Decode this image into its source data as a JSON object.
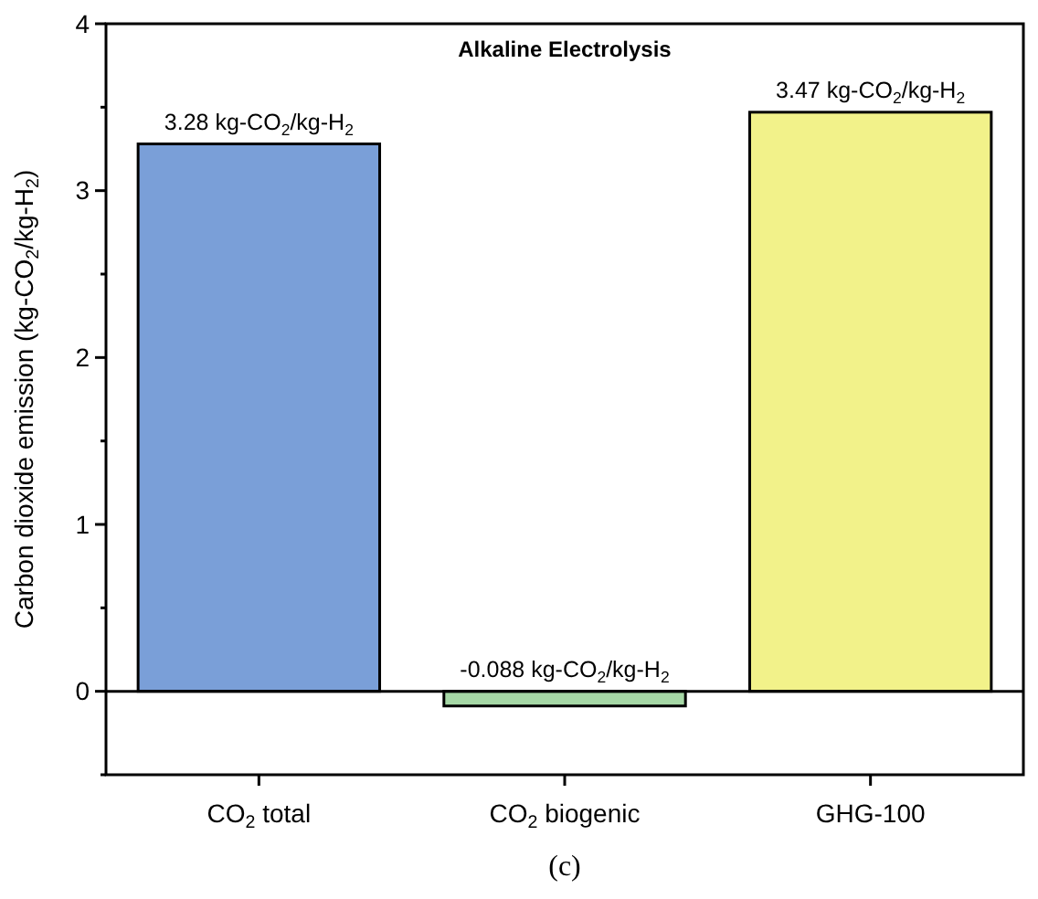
{
  "chart_data": {
    "type": "bar",
    "title": "Alkaline Electrolysis",
    "ylabel": "Carbon dioxide emission (kg-CO$_{2}$/kg-H$_{2}$)",
    "categories": [
      "CO$_{2}$ total",
      "CO$_{2}$ biogenic",
      "GHG-100"
    ],
    "values": [
      3.28,
      -0.088,
      3.47
    ],
    "colors": [
      "#7a9fd8",
      "#a6d8a6",
      "#f2f28a"
    ],
    "value_labels": [
      "3.28 kg-CO$_{2}$/kg-H$_{2}$",
      "-0.088 kg-CO$_{2}$/kg-H$_{2}$",
      "3.47 kg-CO$_{2}$/kg-H$_{2}$"
    ],
    "ylim": [
      -0.5,
      4
    ],
    "yticks": [
      {
        "value": -0.5,
        "label": null
      },
      0,
      {
        "value": 0.5,
        "label": null
      },
      1,
      {
        "value": 1.5,
        "label": null
      },
      2,
      {
        "value": 2.5,
        "label": null
      },
      3,
      {
        "value": 3.5,
        "label": null
      },
      4
    ],
    "annotations": [
      "(c)"
    ],
    "orientation": "vertical"
  }
}
